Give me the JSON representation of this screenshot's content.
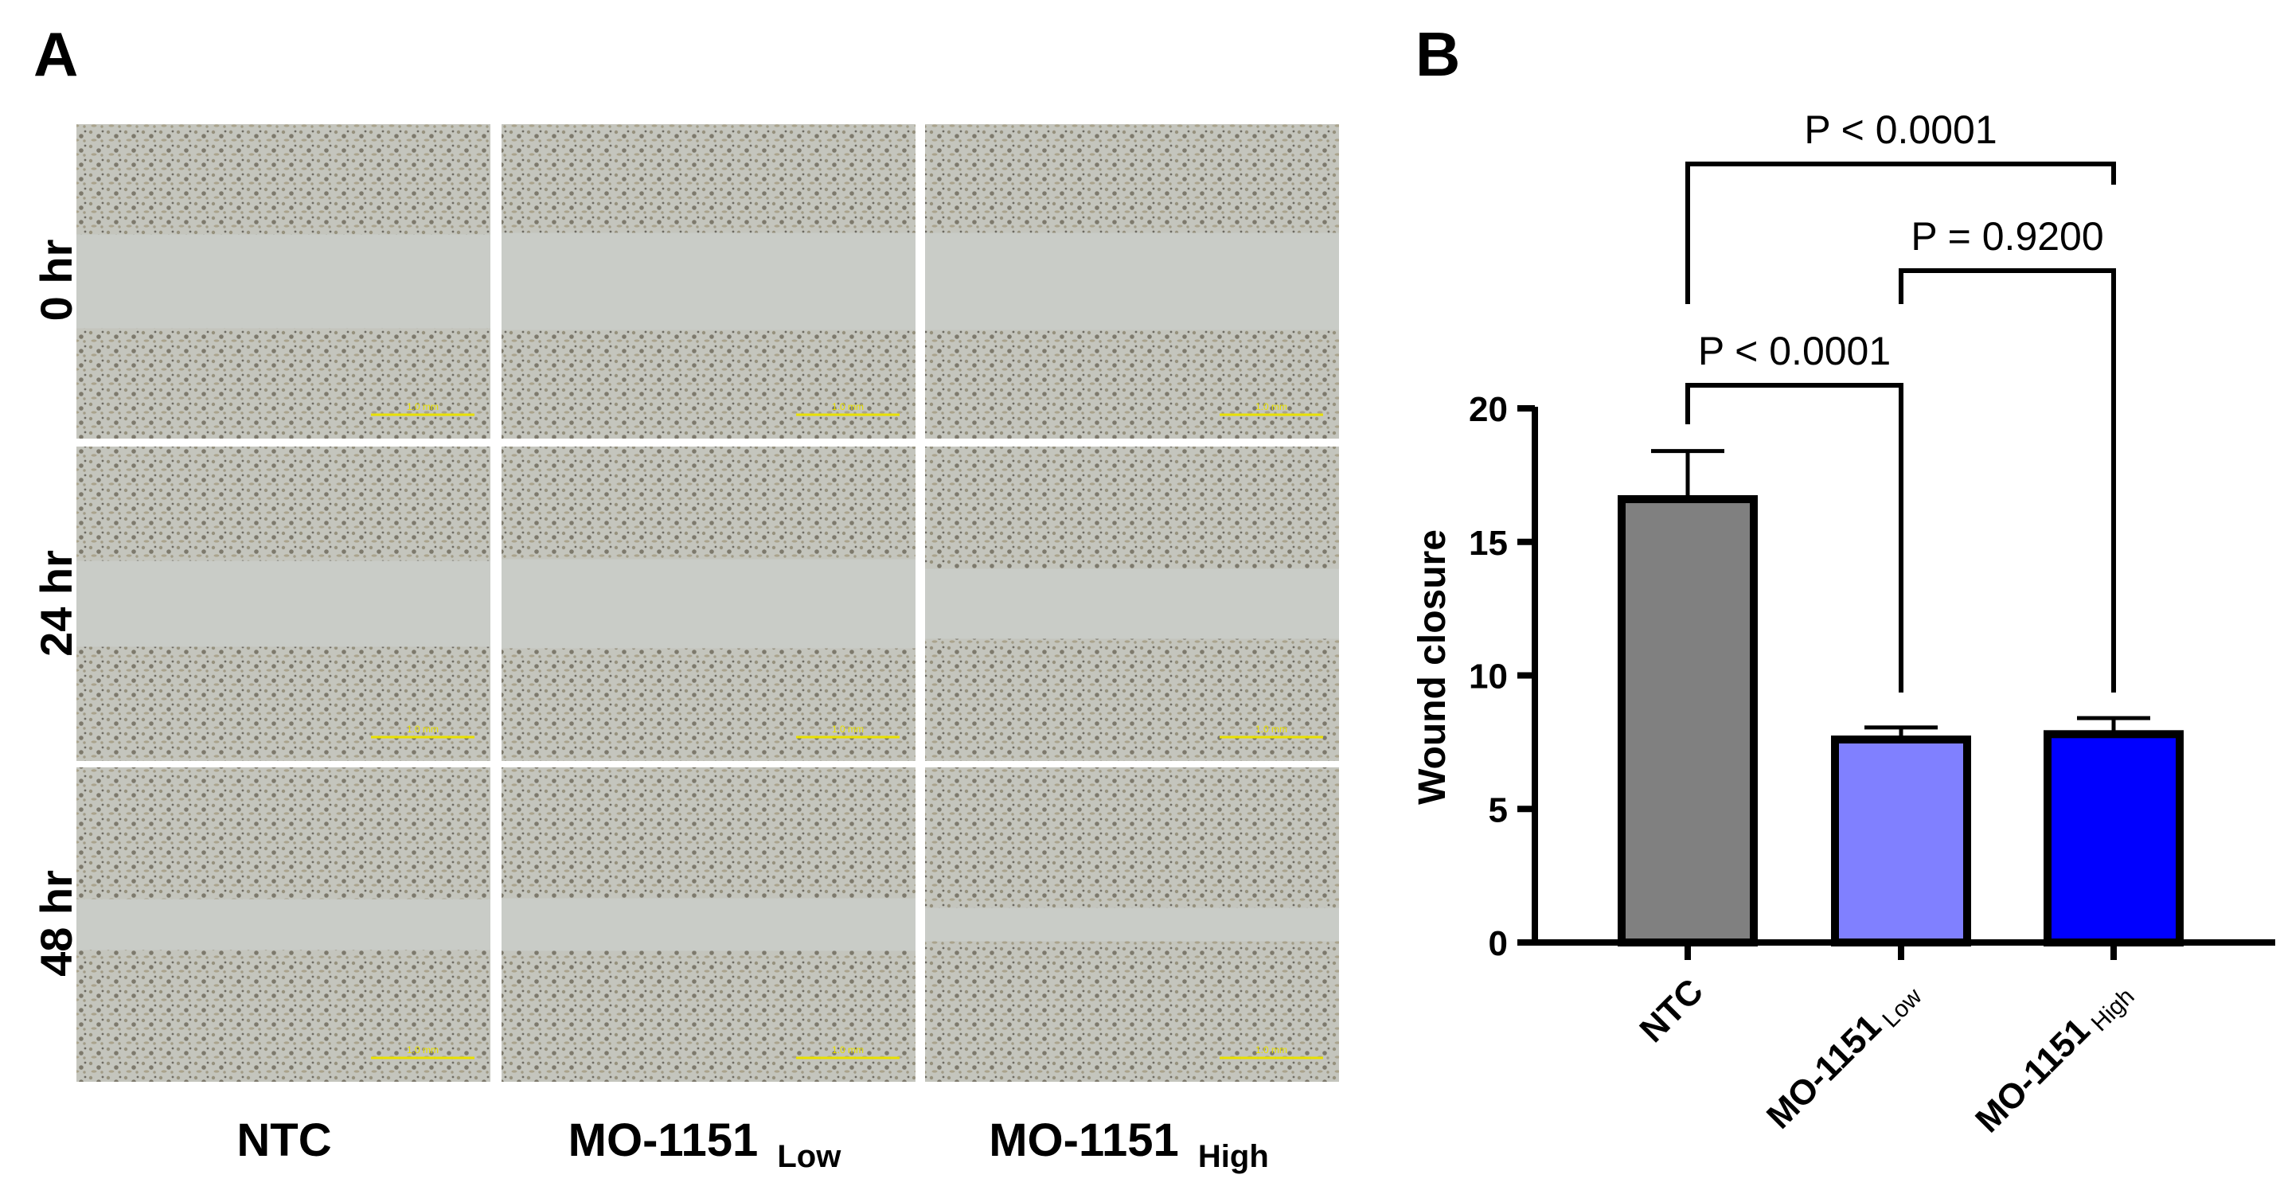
{
  "panel_a": {
    "label": "A",
    "row_labels": [
      "0 hr",
      "24 hr",
      "48 hr"
    ],
    "column_labels": [
      {
        "main": "NTC",
        "sub": ""
      },
      {
        "main": "MO-1151",
        "sub": "Low"
      },
      {
        "main": "MO-1151",
        "sub": "High"
      }
    ],
    "scale_bar_text": "1.0 mm",
    "colors": {
      "micrograph_bg": "#c9ccc7",
      "scale_bar": "#e8e000"
    }
  },
  "panel_b": {
    "label": "B"
  },
  "chart_data": {
    "type": "bar",
    "categories": [
      {
        "main": "NTC",
        "sub": ""
      },
      {
        "main": "MO-1151",
        "sub": "Low"
      },
      {
        "main": "MO-1151",
        "sub": "High"
      }
    ],
    "values": [
      16.6,
      7.6,
      7.8
    ],
    "errors": [
      1.8,
      0.45,
      0.6
    ],
    "ylabel": "Wound closure",
    "xlabel": "",
    "ylim": [
      0,
      20
    ],
    "yticks": [
      0,
      5,
      10,
      15,
      20
    ],
    "bar_colors": [
      "#808080",
      "#8080ff",
      "#0000ff"
    ],
    "grid": false,
    "comparisons": [
      {
        "from": 0,
        "to": 2,
        "text": "P < 0.0001"
      },
      {
        "from": 1,
        "to": 2,
        "text": "P = 0.9200"
      },
      {
        "from": 0,
        "to": 1,
        "text": "P < 0.0001"
      }
    ]
  }
}
